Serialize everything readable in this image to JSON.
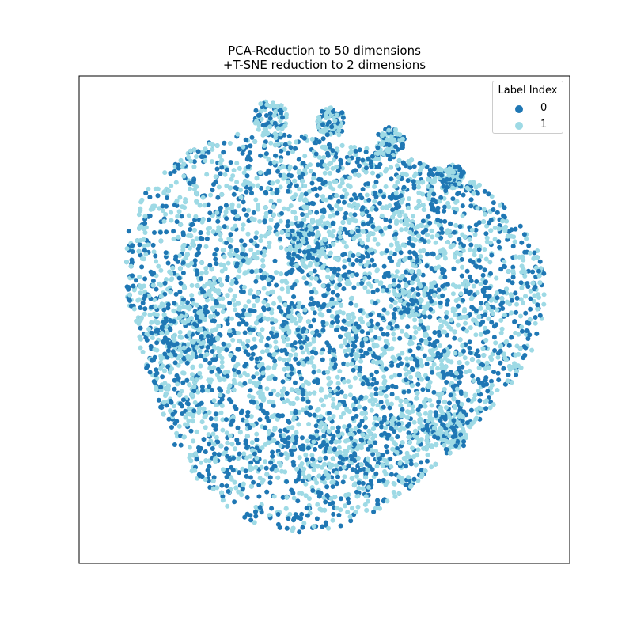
{
  "title_line1": "PCA-Reduction to 50 dimensions",
  "title_line2": "+T-SNE reduction to 2 dimensions",
  "legend": {
    "title": "Label Index",
    "entries": [
      {
        "label": "0",
        "color": "#1f77b4"
      },
      {
        "label": "1",
        "color": "#9edae5"
      }
    ]
  },
  "chart_data": {
    "type": "scatter",
    "title": "PCA-Reduction to 50 dimensions\n+T-SNE reduction to 2 dimensions",
    "xlabel": "",
    "ylabel": "",
    "xticks": [],
    "yticks": [],
    "xlim": [
      -100,
      100
    ],
    "ylim": [
      -100,
      100
    ],
    "grid": false,
    "legend_placement": "top-right",
    "series": [
      {
        "name": "0",
        "color": "#1f77b4",
        "approx_point_count": 5000
      },
      {
        "name": "1",
        "color": "#9edae5",
        "approx_point_count": 7000
      }
    ],
    "distribution": "roughly circular cloud centered near (0, 0) with radius about 85; points of both labels intermixed, with small denser clusters near the top edge"
  }
}
